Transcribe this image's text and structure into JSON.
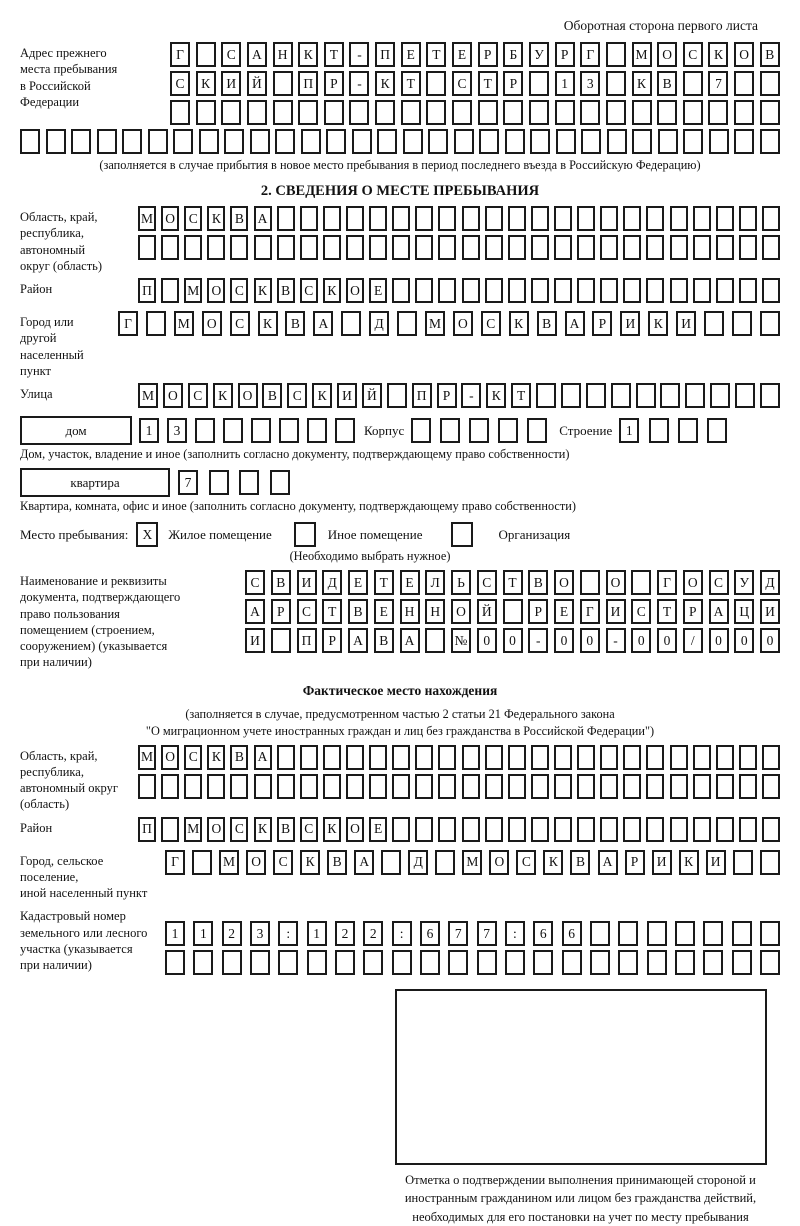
{
  "page": {
    "header_note": "Оборотная сторона первого листа"
  },
  "prev_address": {
    "label": "Адрес прежнего\nместа пребывания\nв Российской\nФедерации",
    "row1": [
      "Г",
      "",
      "С",
      "А",
      "Н",
      "К",
      "Т",
      "-",
      "П",
      "Е",
      "Т",
      "Е",
      "Р",
      "Б",
      "У",
      "Р",
      "Г",
      "",
      "М",
      "О",
      "С",
      "К",
      "О",
      "В"
    ],
    "row2": [
      "С",
      "К",
      "И",
      "Й",
      "",
      "П",
      "Р",
      "-",
      "К",
      "Т",
      "",
      "С",
      "Т",
      "Р",
      "",
      "1",
      "3",
      "",
      "К",
      "В",
      "",
      "7",
      "",
      ""
    ],
    "row3": [
      "",
      "",
      "",
      "",
      "",
      "",
      "",
      "",
      "",
      "",
      "",
      "",
      "",
      "",
      "",
      "",
      "",
      "",
      "",
      "",
      "",
      "",
      "",
      ""
    ],
    "full_row": [
      "",
      "",
      "",
      "",
      "",
      "",
      "",
      "",
      "",
      "",
      "",
      "",
      "",
      "",
      "",
      "",
      "",
      "",
      "",
      "",
      "",
      "",
      "",
      "",
      "",
      "",
      "",
      "",
      "",
      ""
    ],
    "note": "(заполняется в случае прибытия в новое место пребывания в период последнего въезда в Российскую Федерацию)"
  },
  "section2": {
    "title": "2. СВЕДЕНИЯ О МЕСТЕ ПРЕБЫВАНИЯ",
    "region": {
      "label": "Область, край,\nреспублика,\nавтономный\nокруг (область)",
      "row1": [
        "М",
        "О",
        "С",
        "К",
        "В",
        "А",
        "",
        "",
        "",
        "",
        "",
        "",
        "",
        "",
        "",
        "",
        "",
        "",
        "",
        "",
        "",
        "",
        "",
        "",
        "",
        "",
        "",
        ""
      ],
      "row2": [
        "",
        "",
        "",
        "",
        "",
        "",
        "",
        "",
        "",
        "",
        "",
        "",
        "",
        "",
        "",
        "",
        "",
        "",
        "",
        "",
        "",
        "",
        "",
        "",
        "",
        "",
        "",
        ""
      ]
    },
    "district": {
      "label": "Район",
      "row": [
        "П",
        "",
        "М",
        "О",
        "С",
        "К",
        "В",
        "С",
        "К",
        "О",
        "Е",
        "",
        "",
        "",
        "",
        "",
        "",
        "",
        "",
        "",
        "",
        "",
        "",
        "",
        "",
        "",
        "",
        ""
      ]
    },
    "city": {
      "label": "Город или другой\nнаселенный пункт",
      "row": [
        "Г",
        "",
        "М",
        "О",
        "С",
        "К",
        "В",
        "А",
        "",
        "Д",
        "",
        "М",
        "О",
        "С",
        "К",
        "В",
        "А",
        "Р",
        "И",
        "К",
        "И",
        "",
        "",
        ""
      ]
    },
    "street": {
      "label": "Улица",
      "row": [
        "М",
        "О",
        "С",
        "К",
        "О",
        "В",
        "С",
        "К",
        "И",
        "Й",
        "",
        "П",
        "Р",
        "-",
        "К",
        "Т",
        "",
        "",
        "",
        "",
        "",
        "",
        "",
        "",
        "",
        ""
      ]
    },
    "house": {
      "label": "дом",
      "cells": [
        "1",
        "3",
        "",
        "",
        "",
        "",
        "",
        ""
      ],
      "korpus_label": "Корпус",
      "korpus_cells": [
        "",
        "",
        "",
        "",
        ""
      ],
      "stroenie_label": "Строение",
      "stroenie_cells": [
        "1",
        "",
        "",
        ""
      ]
    },
    "house_note": "Дом, участок, владение и иное (заполнить согласно документу, подтверждающему право собственности)",
    "apartment": {
      "label": "квартира",
      "cells": [
        "7",
        "",
        "",
        ""
      ]
    },
    "apartment_note": "Квартира, комната, офис и иное (заполнить согласно документу, подтверждающему право собственности)",
    "stay": {
      "label": "Место пребывания:",
      "options": [
        {
          "label": "Жилое помещение",
          "mark": "X"
        },
        {
          "label": "Иное помещение",
          "mark": ""
        },
        {
          "label": "Организация",
          "mark": ""
        }
      ],
      "note": "(Необходимо выбрать нужное)"
    },
    "doc": {
      "label": "Наименование и реквизиты\nдокумента, подтверждающего\nправо пользования\nпомещением (строением,\nсооружением) (указывается\nпри наличии)",
      "row1": [
        "С",
        "В",
        "И",
        "Д",
        "Е",
        "Т",
        "Е",
        "Л",
        "Ь",
        "С",
        "Т",
        "В",
        "О",
        "",
        "О",
        "",
        "Г",
        "О",
        "С",
        "У",
        "Д"
      ],
      "row2": [
        "А",
        "Р",
        "С",
        "Т",
        "В",
        "Е",
        "Н",
        "Н",
        "О",
        "Й",
        "",
        "Р",
        "Е",
        "Г",
        "И",
        "С",
        "Т",
        "Р",
        "А",
        "Ц",
        "И"
      ],
      "row3": [
        "И",
        "",
        "П",
        "Р",
        "А",
        "В",
        "А",
        "",
        "№",
        "0",
        "0",
        "-",
        "0",
        "0",
        "-",
        "0",
        "0",
        "/",
        "0",
        "0",
        "0"
      ]
    }
  },
  "actual_location": {
    "title": "Фактическое место нахождения",
    "note_line1": "(заполняется в случае, предусмотренном частью 2 статьи 21 Федерального закона",
    "note_line2": "\"О миграционном учете иностранных граждан и лиц без гражданства в Российской Федерации\")",
    "region": {
      "label": "Область, край,\nреспублика,\nавтономный округ\n(область)",
      "row1": [
        "М",
        "О",
        "С",
        "К",
        "В",
        "А",
        "",
        "",
        "",
        "",
        "",
        "",
        "",
        "",
        "",
        "",
        "",
        "",
        "",
        "",
        "",
        "",
        "",
        "",
        "",
        "",
        "",
        ""
      ],
      "row2": [
        "",
        "",
        "",
        "",
        "",
        "",
        "",
        "",
        "",
        "",
        "",
        "",
        "",
        "",
        "",
        "",
        "",
        "",
        "",
        "",
        "",
        "",
        "",
        "",
        "",
        "",
        "",
        ""
      ]
    },
    "district": {
      "label": "Район",
      "row": [
        "П",
        "",
        "М",
        "О",
        "С",
        "К",
        "В",
        "С",
        "К",
        "О",
        "Е",
        "",
        "",
        "",
        "",
        "",
        "",
        "",
        "",
        "",
        "",
        "",
        "",
        "",
        "",
        "",
        "",
        ""
      ]
    },
    "city": {
      "label": "Город, сельское поселение,\nиной населенный пункт",
      "row": [
        "Г",
        "",
        "М",
        "О",
        "С",
        "К",
        "В",
        "А",
        "",
        "Д",
        "",
        "М",
        "О",
        "С",
        "К",
        "В",
        "А",
        "Р",
        "И",
        "К",
        "И",
        "",
        ""
      ]
    },
    "cadastre": {
      "label": "Кадастровый номер\nземельного или лесного\nучастка (указывается\nпри наличии)",
      "row1": [
        "1",
        "1",
        "2",
        "3",
        ":",
        "1",
        "2",
        "2",
        ":",
        "6",
        "7",
        "7",
        ":",
        "6",
        "6",
        "",
        "",
        "",
        "",
        "",
        "",
        ""
      ],
      "row2": [
        "",
        "",
        "",
        "",
        "",
        "",
        "",
        "",
        "",
        "",
        "",
        "",
        "",
        "",
        "",
        "",
        "",
        "",
        "",
        "",
        "",
        ""
      ]
    },
    "stamp_caption": "Отметка о подтверждении выполнения принимающей стороной и иностранным гражданином или лицом без гражданства действий, необходимых для его постановки на учет по месту пребывания"
  }
}
